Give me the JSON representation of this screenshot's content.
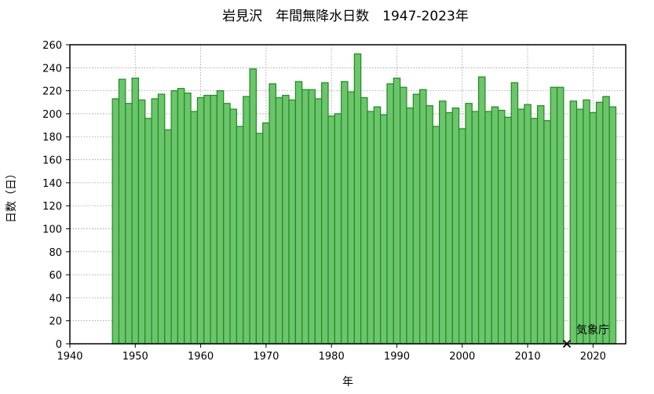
{
  "chart_data": {
    "type": "bar",
    "title": "岩見沢　年間無降水日数　1947-2023年",
    "xlabel": "年",
    "ylabel": "日数（日）",
    "xlim": [
      1940,
      2025
    ],
    "ylim": [
      0,
      260
    ],
    "x_ticks": [
      1940,
      1950,
      1960,
      1970,
      1980,
      1990,
      2000,
      2010,
      2020
    ],
    "y_ticks": [
      0,
      20,
      40,
      60,
      80,
      100,
      120,
      140,
      160,
      180,
      200,
      220,
      240,
      260
    ],
    "grid": true,
    "bar_color": "#6cc46c",
    "bar_edge_color": "#1e8c1e",
    "missing_marker_color": "#000000",
    "annotation": "気象庁",
    "missing_years": [
      2016
    ],
    "x": [
      1947,
      1948,
      1949,
      1950,
      1951,
      1952,
      1953,
      1954,
      1955,
      1956,
      1957,
      1958,
      1959,
      1960,
      1961,
      1962,
      1963,
      1964,
      1965,
      1966,
      1967,
      1968,
      1969,
      1970,
      1971,
      1972,
      1973,
      1974,
      1975,
      1976,
      1977,
      1978,
      1979,
      1980,
      1981,
      1982,
      1983,
      1984,
      1985,
      1986,
      1987,
      1988,
      1989,
      1990,
      1991,
      1992,
      1993,
      1994,
      1995,
      1996,
      1997,
      1998,
      1999,
      2000,
      2001,
      2002,
      2003,
      2004,
      2005,
      2006,
      2007,
      2008,
      2009,
      2010,
      2011,
      2012,
      2013,
      2014,
      2015,
      2017,
      2018,
      2019,
      2020,
      2021,
      2022,
      2023
    ],
    "values": [
      213,
      230,
      209,
      231,
      212,
      196,
      213,
      217,
      186,
      220,
      222,
      218,
      202,
      214,
      216,
      216,
      220,
      209,
      204,
      189,
      215,
      239,
      183,
      192,
      226,
      214,
      216,
      212,
      228,
      221,
      221,
      213,
      227,
      198,
      200,
      228,
      219,
      252,
      214,
      202,
      206,
      199,
      226,
      231,
      223,
      205,
      217,
      221,
      207,
      189,
      211,
      201,
      205,
      187,
      209,
      202,
      232,
      202,
      206,
      203,
      197,
      227,
      204,
      208,
      196,
      207,
      194,
      223,
      223,
      211,
      204,
      212,
      201,
      210,
      215,
      206
    ]
  }
}
